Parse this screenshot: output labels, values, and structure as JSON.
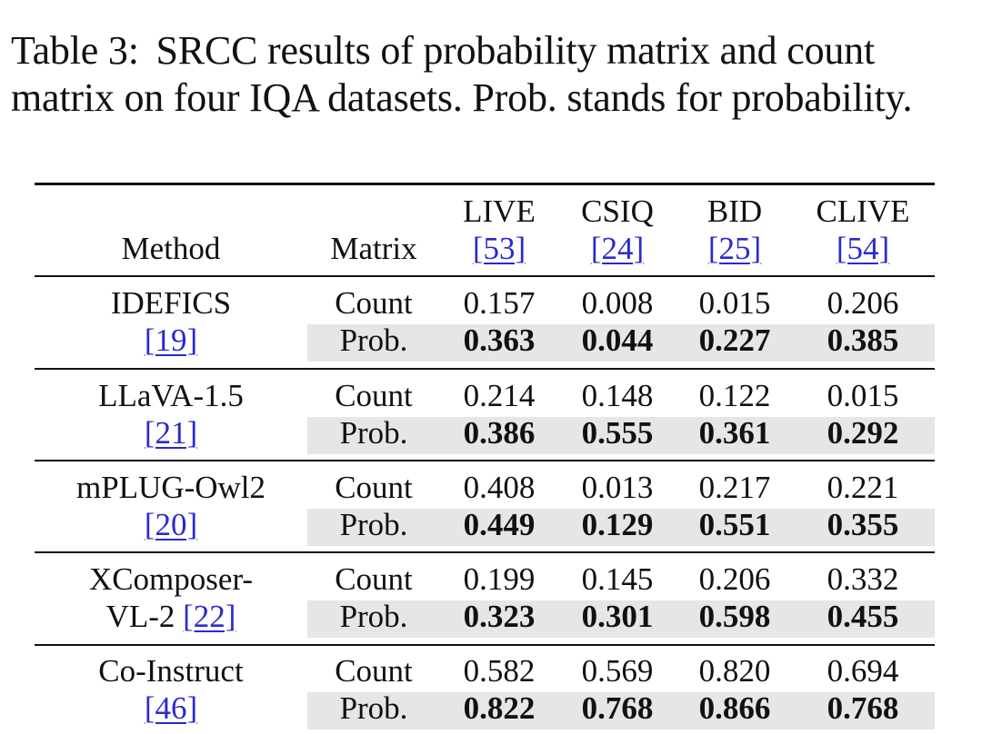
{
  "caption": {
    "label": "Table 3:",
    "text": "SRCC results of probability matrix and count matrix on four IQA datasets. Prob. stands for probability."
  },
  "header": {
    "method": "Method",
    "matrix": "Matrix",
    "columns": [
      {
        "name": "LIVE",
        "ref": "[53]"
      },
      {
        "name": "CSIQ",
        "ref": "[24]"
      },
      {
        "name": "BID",
        "ref": "[25]"
      },
      {
        "name": "CLIVE",
        "ref": "[54]"
      }
    ]
  },
  "groups": [
    {
      "method_line1": "IDEFICS",
      "method_line2": "",
      "method_ref": "[19]",
      "count": {
        "label": "Count",
        "values": [
          "0.157",
          "0.008",
          "0.015",
          "0.206"
        ]
      },
      "prob": {
        "label": "Prob.",
        "values": [
          "0.363",
          "0.044",
          "0.227",
          "0.385"
        ]
      }
    },
    {
      "method_line1": "LLaVA-1.5",
      "method_line2": "",
      "method_ref": "[21]",
      "count": {
        "label": "Count",
        "values": [
          "0.214",
          "0.148",
          "0.122",
          "0.015"
        ]
      },
      "prob": {
        "label": "Prob.",
        "values": [
          "0.386",
          "0.555",
          "0.361",
          "0.292"
        ]
      }
    },
    {
      "method_line1": "mPLUG-Owl2",
      "method_line2": "",
      "method_ref": "[20]",
      "count": {
        "label": "Count",
        "values": [
          "0.408",
          "0.013",
          "0.217",
          "0.221"
        ]
      },
      "prob": {
        "label": "Prob.",
        "values": [
          "0.449",
          "0.129",
          "0.551",
          "0.355"
        ]
      }
    },
    {
      "method_line1": "XComposer-",
      "method_line2": "VL-2",
      "method_ref": "[22]",
      "count": {
        "label": "Count",
        "values": [
          "0.199",
          "0.145",
          "0.206",
          "0.332"
        ]
      },
      "prob": {
        "label": "Prob.",
        "values": [
          "0.323",
          "0.301",
          "0.598",
          "0.455"
        ]
      }
    },
    {
      "method_line1": "Co-Instruct",
      "method_line2": "",
      "method_ref": "[46]",
      "count": {
        "label": "Count",
        "values": [
          "0.582",
          "0.569",
          "0.820",
          "0.694"
        ]
      },
      "prob": {
        "label": "Prob.",
        "values": [
          "0.822",
          "0.768",
          "0.866",
          "0.768"
        ]
      }
    }
  ]
}
